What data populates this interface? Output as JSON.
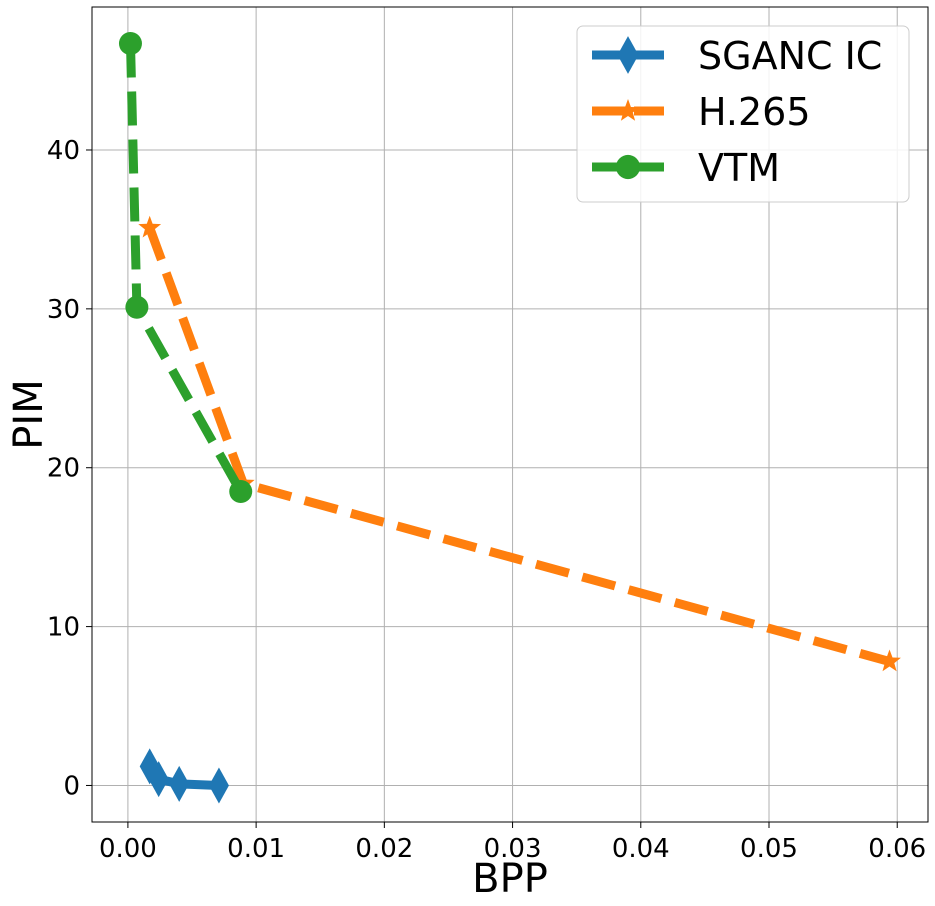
{
  "chart_data": {
    "type": "line",
    "xlabel": "BPP",
    "ylabel": "PIM",
    "xlim": [
      -0.0028,
      0.0624
    ],
    "ylim": [
      -2.3,
      49.0
    ],
    "xticks": [
      0.0,
      0.01,
      0.02,
      0.03,
      0.04,
      0.05,
      0.06
    ],
    "xtick_labels": [
      "0.00",
      "0.01",
      "0.02",
      "0.03",
      "0.04",
      "0.05",
      "0.06"
    ],
    "yticks": [
      0,
      10,
      20,
      30,
      40
    ],
    "ytick_labels": [
      "0",
      "10",
      "20",
      "30",
      "40"
    ],
    "grid": true,
    "legend_position": "top-right",
    "series": [
      {
        "name": "SGANC IC",
        "color": "#1f77b4",
        "marker": "diamond",
        "linestyle": "solid",
        "x": [
          0.0017,
          0.0024,
          0.004,
          0.0071
        ],
        "y": [
          1.2,
          0.4,
          0.1,
          0.0
        ]
      },
      {
        "name": "H.265",
        "color": "#ff7f0e",
        "marker": "star",
        "linestyle": "dashed",
        "x": [
          0.0017,
          0.009,
          0.0594
        ],
        "y": [
          35.1,
          19.0,
          7.8
        ]
      },
      {
        "name": "VTM",
        "color": "#2ca02c",
        "marker": "circle",
        "linestyle": "dashed",
        "x": [
          0.0002,
          0.0007,
          0.0088
        ],
        "y": [
          46.7,
          30.1,
          18.5
        ]
      }
    ]
  }
}
